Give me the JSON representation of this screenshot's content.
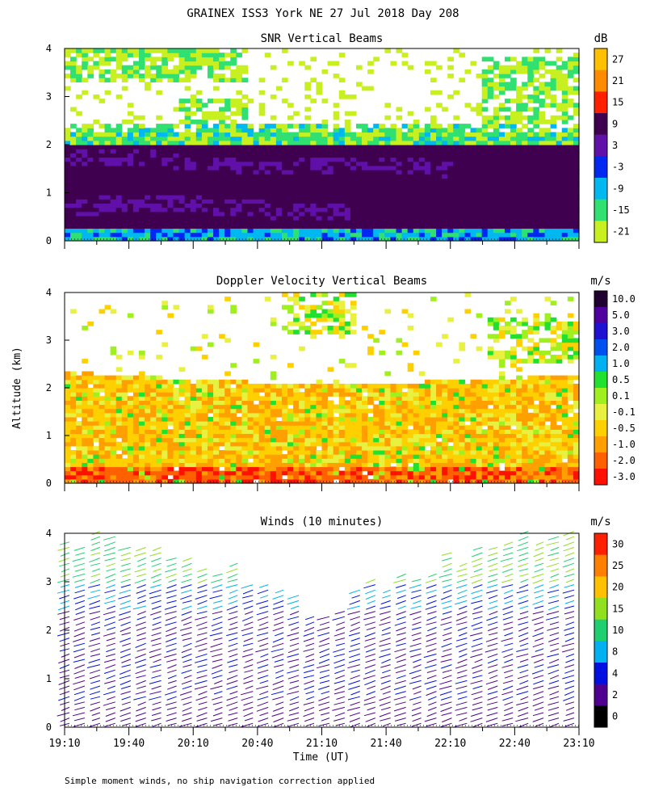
{
  "chart_data": [
    {
      "type": "heatmap",
      "title": "SNR Vertical Beams",
      "unit": "dB",
      "ylim": [
        0,
        4
      ],
      "yticks": [
        "0",
        "1",
        "2",
        "3",
        "4"
      ],
      "colorbar_labels": [
        "27",
        "21",
        "15",
        "9",
        "3",
        "-3",
        "-9",
        "-15",
        "-21"
      ],
      "colorbar_colors": [
        "#ffc000",
        "#ff8c00",
        "#ff2000",
        "#400050",
        "#6010a8",
        "#0028f0",
        "#00b8f0",
        "#30e070",
        "#c8f020"
      ]
    },
    {
      "type": "heatmap",
      "title": "Doppler Velocity Vertical Beams",
      "unit": "m/s",
      "ylim": [
        0,
        4
      ],
      "yticks": [
        "0",
        "1",
        "2",
        "3",
        "4"
      ],
      "colorbar_labels": [
        "10.0",
        "5.0",
        "3.0",
        "2.0",
        "1.0",
        "0.5",
        "0.1",
        "-0.1",
        "-0.5",
        "-1.0",
        "-2.0",
        "-3.0"
      ],
      "colorbar_colors": [
        "#200030",
        "#5000a0",
        "#2010d0",
        "#0050f0",
        "#00b0f0",
        "#20e030",
        "#a0f020",
        "#e8f040",
        "#ffd000",
        "#ffa000",
        "#ff6000",
        "#ff1000"
      ]
    },
    {
      "type": "scatter",
      "title": "Winds (10 minutes)",
      "unit": "m/s",
      "ylim": [
        0,
        4
      ],
      "yticks": [
        "0",
        "1",
        "2",
        "3",
        "4"
      ],
      "colorbar_labels": [
        "30",
        "25",
        "20",
        "15",
        "10",
        "8",
        "4",
        "2",
        "0"
      ],
      "colorbar_colors": [
        "#ff2000",
        "#ff8000",
        "#ffc000",
        "#90e020",
        "#20d070",
        "#00b0f0",
        "#0010e0",
        "#500090",
        "#000000"
      ]
    }
  ],
  "figure": {
    "title": "GRAINEX ISS3 York NE  27 Jul 2018 Day 208",
    "ylabel": "Altitude (km)",
    "xlabel": "Time (UT)",
    "xticks": [
      "19:10",
      "19:40",
      "20:10",
      "20:40",
      "21:10",
      "21:40",
      "22:10",
      "22:40",
      "23:10"
    ],
    "footnote": "Simple moment winds, no ship navigation correction applied"
  }
}
